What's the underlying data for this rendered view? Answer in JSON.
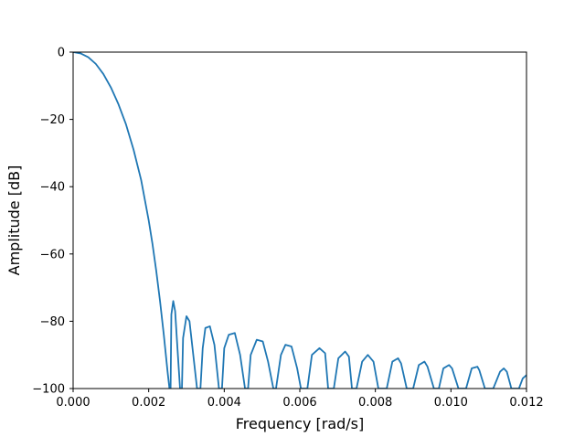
{
  "chart_data": {
    "type": "line",
    "title": "",
    "xlabel": "Frequency [rad/s]",
    "ylabel": "Amplitude [dB]",
    "xlim": [
      0,
      0.012
    ],
    "ylim": [
      -100,
      0
    ],
    "grid": false,
    "x_ticks": [
      0,
      0.002,
      0.004,
      0.006,
      0.008,
      0.01,
      0.012
    ],
    "x_tick_labels": [
      "0.000",
      "0.002",
      "0.004",
      "0.006",
      "0.008",
      "0.010",
      "0.012"
    ],
    "y_ticks": [
      0,
      -20,
      -40,
      -60,
      -80,
      -100
    ],
    "y_tick_labels": [
      "0",
      "−20",
      "−40",
      "−60",
      "−80",
      "−100"
    ],
    "color": "#1f77b4",
    "series": [
      {
        "x": [
          0,
          0.0002,
          0.0004,
          0.0006,
          0.0008,
          0.001,
          0.0012,
          0.0014,
          0.0016,
          0.0018,
          0.002,
          0.0021,
          0.0022,
          0.0023,
          0.0024,
          0.0025,
          0.00255,
          0.00258,
          0.0026,
          0.00265,
          0.0027,
          0.00275,
          0.00283,
          0.00288,
          0.00291,
          0.003,
          0.00308,
          0.00318,
          0.00328,
          0.00337,
          0.00343,
          0.0035,
          0.00362,
          0.00374,
          0.00386,
          0.00394,
          0.004,
          0.00412,
          0.00428,
          0.00442,
          0.00455,
          0.00463,
          0.0047,
          0.00486,
          0.00502,
          0.00516,
          0.0053,
          0.00537,
          0.0055,
          0.00562,
          0.00578,
          0.00593,
          0.00603,
          0.0062,
          0.00632,
          0.00652,
          0.00667,
          0.00675,
          0.0069,
          0.00702,
          0.0072,
          0.0073,
          0.00738,
          0.0075,
          0.00765,
          0.0078,
          0.00795,
          0.00808,
          0.0083,
          0.00845,
          0.0086,
          0.00868,
          0.00883,
          0.009,
          0.00915,
          0.0093,
          0.00938,
          0.00955,
          0.00968,
          0.0098,
          0.00995,
          0.01003,
          0.0102,
          0.0104,
          0.01055,
          0.0107,
          0.01075,
          0.0109,
          0.01112,
          0.0113,
          0.0114,
          0.01148,
          0.0116,
          0.0118,
          0.0119,
          0.012
        ],
        "y": [
          0,
          -0.4,
          -1.5,
          -3.5,
          -6.5,
          -10.5,
          -15.5,
          -21.5,
          -29,
          -38,
          -50,
          -57,
          -65,
          -74,
          -84,
          -95,
          -100,
          -100,
          -78,
          -74,
          -77,
          -86,
          -100,
          -100,
          -85,
          -78.5,
          -80,
          -90,
          -100,
          -100,
          -88,
          -82,
          -81.5,
          -87,
          -100,
          -100,
          -88,
          -84,
          -83.5,
          -90,
          -100,
          -100,
          -90,
          -85.5,
          -86,
          -92,
          -100,
          -100,
          -90,
          -87,
          -87.5,
          -94,
          -100,
          -100,
          -90,
          -88,
          -89.5,
          -100,
          -100,
          -91,
          -89,
          -90.5,
          -100,
          -100,
          -92,
          -90,
          -92,
          -100,
          -100,
          -92,
          -91,
          -92.5,
          -100,
          -100,
          -93,
          -92,
          -93.5,
          -100,
          -100,
          -94,
          -93,
          -94,
          -100,
          -100,
          -94,
          -93.5,
          -94.5,
          -100,
          -100,
          -95,
          -94,
          -95,
          -100,
          -100,
          -97,
          -96
        ]
      }
    ]
  }
}
